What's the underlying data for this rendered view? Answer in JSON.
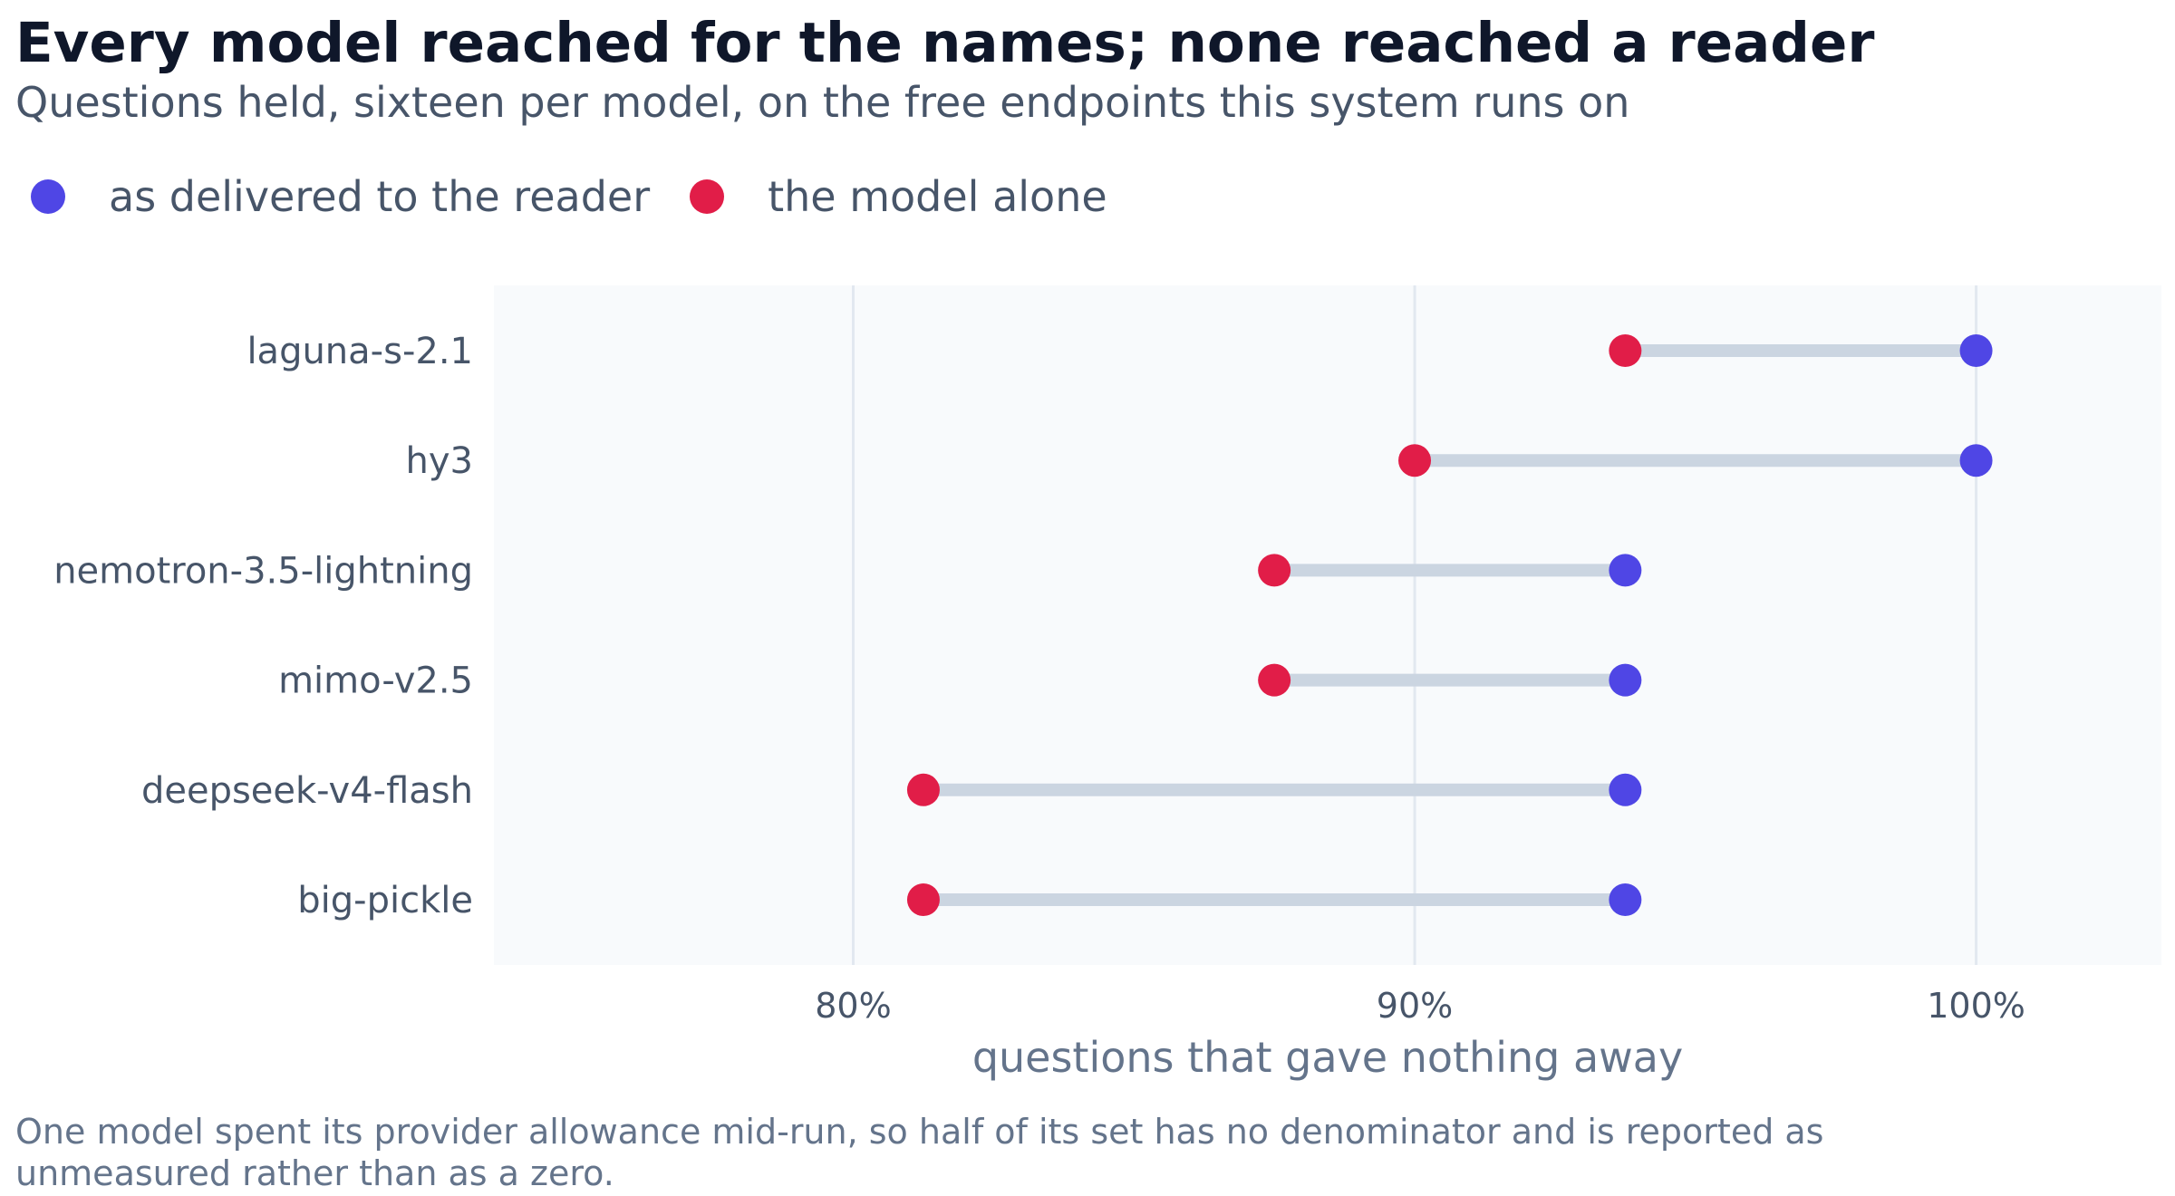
{
  "chart_data": {
    "type": "dumbbell",
    "title": "Every model reached for the names; none reached a reader",
    "subtitle": "Questions held, sixteen per model, on the free endpoints this system runs on",
    "xlabel": "questions that gave nothing away",
    "ylabel": "",
    "xlim": [
      73.6,
      103.3
    ],
    "x_ticks": [
      80,
      90,
      100
    ],
    "x_tick_labels": [
      "80%",
      "90%",
      "100%"
    ],
    "grid": "vertical",
    "legend": {
      "placement": "top-left"
    },
    "categories": [
      "laguna-s-2.1",
      "hy3",
      "nemotron-3.5-lightning",
      "mimo-v2.5",
      "deepseek-v4-flash",
      "big-pickle"
    ],
    "series": [
      {
        "name": "as delivered to the reader",
        "color": "#4f46e5",
        "values": [
          100,
          100,
          93.75,
          93.75,
          93.75,
          93.75
        ]
      },
      {
        "name": "the model alone",
        "color": "#e11d48",
        "values": [
          93.75,
          90,
          87.5,
          87.5,
          81.25,
          81.25
        ]
      }
    ],
    "connector_color": "#cbd5e1",
    "plot_background": "#f8fafc",
    "gridline_color": "#e2e8f0"
  },
  "footnote": "One model spent its provider allowance mid-run, so half of its set has no denominator and is reported as unmeasured rather than as a zero."
}
